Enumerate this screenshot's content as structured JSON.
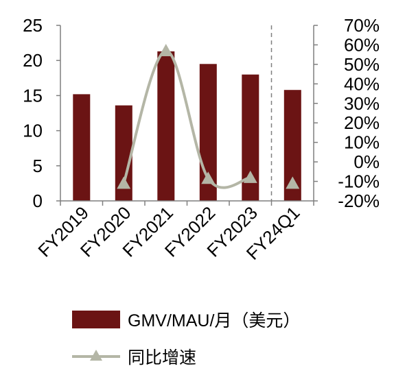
{
  "chart_data": {
    "type": "bar",
    "categories": [
      "FY2019",
      "FY2020",
      "FY2021",
      "FY2022",
      "FY2023",
      "FY24Q1"
    ],
    "series": [
      {
        "name": "GMV/MAU/月（美元）",
        "type": "bar",
        "axis": "left",
        "values": [
          15.2,
          13.6,
          21.3,
          19.5,
          18.0,
          15.8
        ]
      },
      {
        "name": "同比增速",
        "type": "line",
        "axis": "right",
        "values": [
          null,
          -11,
          57,
          -8.5,
          -8,
          -11
        ],
        "marker": "triangle",
        "line_segment": [
          "FY2020",
          "FY2023"
        ]
      }
    ],
    "left_axis": {
      "ylim": [
        0,
        25
      ],
      "ticks": [
        "0",
        "5",
        "10",
        "15",
        "20",
        "25"
      ]
    },
    "right_axis": {
      "ylim": [
        -20,
        70
      ],
      "ticks": [
        "-20%",
        "-10%",
        "0%",
        "10%",
        "20%",
        "30%",
        "40%",
        "50%",
        "60%",
        "70%"
      ]
    },
    "separator_before": "FY24Q1",
    "grid": false,
    "legend_placement": "bottom",
    "colors": {
      "bar": "#6b1414",
      "line": "#b4b6a6",
      "axis": "#7f7f7f",
      "separator": "#7f7f7f"
    }
  }
}
